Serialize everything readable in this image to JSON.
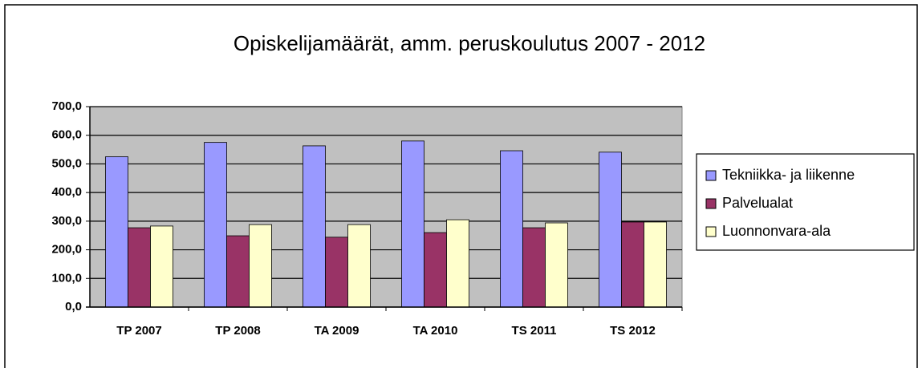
{
  "chart_data": {
    "type": "bar",
    "title": "Opiskelijamäärät, amm. peruskoulutus 2007 - 2012",
    "categories": [
      "TP 2007",
      "TP 2008",
      "TA 2009",
      "TA 2010",
      "TS 2011",
      "TS 2012"
    ],
    "series": [
      {
        "name": "Tekniikka- ja liikenne",
        "color": "#9999ff",
        "values": [
          525,
          575,
          563,
          580,
          546,
          541
        ]
      },
      {
        "name": "Palvelualat",
        "color": "#993366",
        "values": [
          277,
          249,
          244,
          260,
          277,
          297
        ]
      },
      {
        "name": "Luonnonvara-ala",
        "color": "#ffffcc",
        "values": [
          283,
          288,
          288,
          305,
          294,
          297
        ]
      }
    ],
    "ylim": [
      0,
      700
    ],
    "yticks": [
      {
        "value": 0,
        "label": "0,0"
      },
      {
        "value": 100,
        "label": "100,0"
      },
      {
        "value": 200,
        "label": "200,0"
      },
      {
        "value": 300,
        "label": "300,0"
      },
      {
        "value": 400,
        "label": "400,0"
      },
      {
        "value": 500,
        "label": "500,0"
      },
      {
        "value": 600,
        "label": "600,0"
      },
      {
        "value": 700,
        "label": "700,0"
      }
    ],
    "grid": true,
    "legend": "right"
  }
}
